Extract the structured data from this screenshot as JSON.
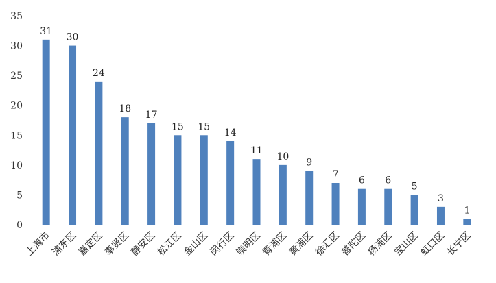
{
  "chart_data": {
    "type": "bar",
    "title": "",
    "xlabel": "",
    "ylabel": "",
    "ylim": [
      0,
      35
    ],
    "yticks": [
      0,
      5,
      10,
      15,
      20,
      25,
      30,
      35
    ],
    "grid": false,
    "legend": "none",
    "categories": [
      "上海市",
      "浦东区",
      "嘉定区",
      "奉贤区",
      "静安区",
      "松江区",
      "金山区",
      "闵行区",
      "崇明区",
      "青浦区",
      "黄浦区",
      "徐汇区",
      "普陀区",
      "杨浦区",
      "宝山区",
      "虹口区",
      "长宁区"
    ],
    "series": [
      {
        "values": [
          31,
          30,
          24,
          18,
          17,
          15,
          15,
          14,
          11,
          10,
          9,
          7,
          6,
          6,
          5,
          3,
          1
        ]
      }
    ],
    "colors": {
      "bar": "#4f81bd",
      "axis": "#bfbfbf"
    }
  }
}
